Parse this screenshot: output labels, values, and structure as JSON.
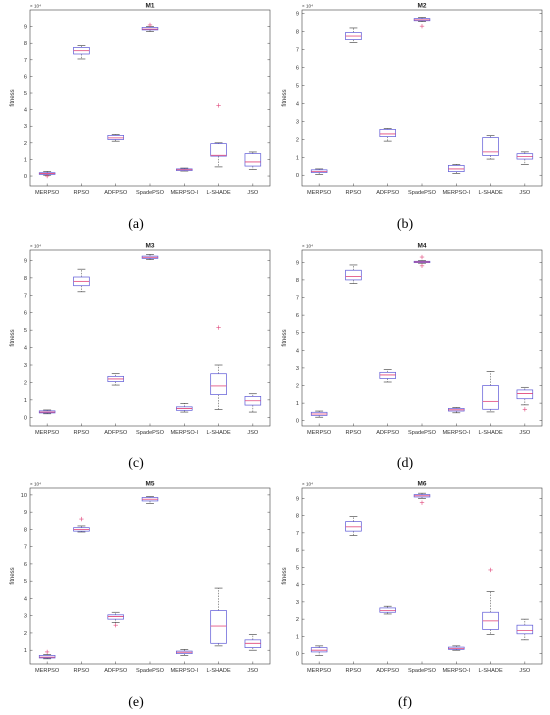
{
  "figure": {
    "panels": [
      {
        "label": "(a)"
      },
      {
        "label": "(b)"
      },
      {
        "label": "(c)"
      },
      {
        "label": "(d)"
      },
      {
        "label": "(e)"
      },
      {
        "label": "(f)"
      }
    ]
  },
  "colors": {
    "box": "#5b57d6",
    "median": "#e0457a",
    "outlier": "#e0457a",
    "axis": "#404040"
  },
  "chart_data": [
    {
      "type": "box",
      "title": "M1",
      "ylabel": "fitness",
      "exponent_label": "× 10⁴",
      "ylim": [
        -0.6,
        10.0
      ],
      "yticks": [
        0,
        1,
        2,
        3,
        4,
        5,
        6,
        7,
        8,
        9
      ],
      "categories": [
        "MERPSO",
        "RPSO",
        "ADFPSO",
        "SpadePSO",
        "MERPSO-I",
        "L-SHADE",
        "JSO"
      ],
      "boxes": [
        {
          "wl": 0.05,
          "q1": 0.1,
          "med": 0.15,
          "q3": 0.2,
          "wh": 0.28,
          "outliers": [
            0.0
          ]
        },
        {
          "wl": 7.05,
          "q1": 7.35,
          "med": 7.55,
          "q3": 7.75,
          "wh": 7.85,
          "outliers": []
        },
        {
          "wl": 2.1,
          "q1": 2.2,
          "med": 2.3,
          "q3": 2.45,
          "wh": 2.5,
          "outliers": []
        },
        {
          "wl": 8.7,
          "q1": 8.8,
          "med": 8.85,
          "q3": 8.95,
          "wh": 9.0,
          "outliers": [
            9.1
          ]
        },
        {
          "wl": 0.3,
          "q1": 0.33,
          "med": 0.38,
          "q3": 0.43,
          "wh": 0.48,
          "outliers": []
        },
        {
          "wl": 0.55,
          "q1": 1.2,
          "med": 1.25,
          "q3": 1.95,
          "wh": 2.0,
          "outliers": [
            4.25
          ]
        },
        {
          "wl": 0.4,
          "q1": 0.6,
          "med": 0.85,
          "q3": 1.35,
          "wh": 1.45,
          "outliers": []
        }
      ]
    },
    {
      "type": "box",
      "title": "M2",
      "ylabel": "fitness",
      "exponent_label": "× 10⁴",
      "ylim": [
        -0.6,
        9.2
      ],
      "yticks": [
        0,
        1,
        2,
        3,
        4,
        5,
        6,
        7,
        8,
        9
      ],
      "categories": [
        "MERPSO",
        "RPSO",
        "ADFPSO",
        "SpadePSO",
        "MERPSO-I",
        "L-SHADE",
        "JSO"
      ],
      "boxes": [
        {
          "wl": 0.05,
          "q1": 0.15,
          "med": 0.2,
          "q3": 0.3,
          "wh": 0.35,
          "outliers": []
        },
        {
          "wl": 7.4,
          "q1": 7.55,
          "med": 7.75,
          "q3": 7.95,
          "wh": 8.2,
          "outliers": []
        },
        {
          "wl": 1.9,
          "q1": 2.15,
          "med": 2.3,
          "q3": 2.55,
          "wh": 2.6,
          "outliers": []
        },
        {
          "wl": 8.55,
          "q1": 8.6,
          "med": 8.65,
          "q3": 8.72,
          "wh": 8.78,
          "outliers": [
            8.3
          ]
        },
        {
          "wl": 0.1,
          "q1": 0.2,
          "med": 0.35,
          "q3": 0.55,
          "wh": 0.6,
          "outliers": []
        },
        {
          "wl": 0.9,
          "q1": 1.1,
          "med": 1.3,
          "q3": 2.1,
          "wh": 2.2,
          "outliers": []
        },
        {
          "wl": 0.6,
          "q1": 0.9,
          "med": 1.05,
          "q3": 1.2,
          "wh": 1.3,
          "outliers": []
        }
      ]
    },
    {
      "type": "box",
      "title": "M3",
      "ylabel": "fitness",
      "exponent_label": "× 10⁴",
      "ylim": [
        -0.5,
        9.6
      ],
      "yticks": [
        0,
        1,
        2,
        3,
        4,
        5,
        6,
        7,
        8,
        9
      ],
      "categories": [
        "MERPSO",
        "RPSO",
        "ADFPSO",
        "SpadePSO",
        "MERPSO-I",
        "L-SHADE",
        "JSO"
      ],
      "boxes": [
        {
          "wl": 0.2,
          "q1": 0.25,
          "med": 0.3,
          "q3": 0.37,
          "wh": 0.42,
          "outliers": []
        },
        {
          "wl": 7.2,
          "q1": 7.55,
          "med": 7.8,
          "q3": 8.05,
          "wh": 8.5,
          "outliers": []
        },
        {
          "wl": 1.85,
          "q1": 2.05,
          "med": 2.2,
          "q3": 2.35,
          "wh": 2.5,
          "outliers": []
        },
        {
          "wl": 9.05,
          "q1": 9.12,
          "med": 9.18,
          "q3": 9.25,
          "wh": 9.35,
          "outliers": []
        },
        {
          "wl": 0.3,
          "q1": 0.4,
          "med": 0.5,
          "q3": 0.6,
          "wh": 0.8,
          "outliers": []
        },
        {
          "wl": 0.45,
          "q1": 1.3,
          "med": 1.8,
          "q3": 2.5,
          "wh": 3.0,
          "outliers": [
            5.15
          ]
        },
        {
          "wl": 0.3,
          "q1": 0.7,
          "med": 0.95,
          "q3": 1.2,
          "wh": 1.35,
          "outliers": []
        }
      ]
    },
    {
      "type": "box",
      "title": "M4",
      "ylabel": "fitness",
      "exponent_label": "× 10⁴",
      "ylim": [
        -0.3,
        9.7
      ],
      "yticks": [
        0,
        1,
        2,
        3,
        4,
        5,
        6,
        7,
        8,
        9
      ],
      "categories": [
        "MERPSO",
        "RPSO",
        "ADFPSO",
        "SpadePSO",
        "MERPSO-I",
        "L-SHADE",
        "JSO"
      ],
      "boxes": [
        {
          "wl": 0.2,
          "q1": 0.3,
          "med": 0.38,
          "q3": 0.48,
          "wh": 0.55,
          "outliers": []
        },
        {
          "wl": 7.8,
          "q1": 8.0,
          "med": 8.2,
          "q3": 8.55,
          "wh": 8.85,
          "outliers": []
        },
        {
          "wl": 2.2,
          "q1": 2.4,
          "med": 2.6,
          "q3": 2.75,
          "wh": 2.9,
          "outliers": []
        },
        {
          "wl": 8.95,
          "q1": 8.98,
          "med": 9.02,
          "q3": 9.06,
          "wh": 9.1,
          "outliers": [
            9.3,
            8.8
          ]
        },
        {
          "wl": 0.45,
          "q1": 0.55,
          "med": 0.62,
          "q3": 0.7,
          "wh": 0.75,
          "outliers": []
        },
        {
          "wl": 0.5,
          "q1": 0.65,
          "med": 1.1,
          "q3": 2.0,
          "wh": 2.8,
          "outliers": []
        },
        {
          "wl": 0.9,
          "q1": 1.25,
          "med": 1.55,
          "q3": 1.75,
          "wh": 1.9,
          "outliers": [
            0.65
          ]
        }
      ]
    },
    {
      "type": "box",
      "title": "M5",
      "ylabel": "fitness",
      "exponent_label": "× 10⁴",
      "ylim": [
        0.2,
        10.4
      ],
      "yticks": [
        1,
        2,
        3,
        4,
        5,
        6,
        7,
        8,
        9,
        10
      ],
      "categories": [
        "MERPSO",
        "RPSO",
        "ADFPSO",
        "SpadePSO",
        "MERPSO-I",
        "L-SHADE",
        "JSO"
      ],
      "boxes": [
        {
          "wl": 0.5,
          "q1": 0.55,
          "med": 0.6,
          "q3": 0.7,
          "wh": 0.75,
          "outliers": [
            0.9
          ]
        },
        {
          "wl": 7.85,
          "q1": 7.9,
          "med": 8.0,
          "q3": 8.1,
          "wh": 8.2,
          "outliers": [
            8.6
          ]
        },
        {
          "wl": 2.6,
          "q1": 2.8,
          "med": 2.95,
          "q3": 3.05,
          "wh": 3.2,
          "outliers": [
            2.45
          ]
        },
        {
          "wl": 9.5,
          "q1": 9.65,
          "med": 9.75,
          "q3": 9.85,
          "wh": 9.9,
          "outliers": []
        },
        {
          "wl": 0.7,
          "q1": 0.8,
          "med": 0.88,
          "q3": 0.95,
          "wh": 1.05,
          "outliers": []
        },
        {
          "wl": 1.25,
          "q1": 1.4,
          "med": 2.4,
          "q3": 3.3,
          "wh": 4.6,
          "outliers": []
        },
        {
          "wl": 1.0,
          "q1": 1.15,
          "med": 1.4,
          "q3": 1.6,
          "wh": 1.9,
          "outliers": []
        }
      ]
    },
    {
      "type": "box",
      "title": "M6",
      "ylabel": "fitness",
      "exponent_label": "× 10⁴",
      "ylim": [
        -0.6,
        9.6
      ],
      "yticks": [
        0,
        1,
        2,
        3,
        4,
        5,
        6,
        7,
        8,
        9
      ],
      "categories": [
        "MERPSO",
        "RPSO",
        "ADFPSO",
        "SpadePSO",
        "MERPSO-I",
        "L-SHADE",
        "JSO"
      ],
      "boxes": [
        {
          "wl": -0.1,
          "q1": 0.1,
          "med": 0.2,
          "q3": 0.35,
          "wh": 0.45,
          "outliers": []
        },
        {
          "wl": 6.85,
          "q1": 7.1,
          "med": 7.35,
          "q3": 7.65,
          "wh": 7.95,
          "outliers": []
        },
        {
          "wl": 2.3,
          "q1": 2.4,
          "med": 2.5,
          "q3": 2.65,
          "wh": 2.75,
          "outliers": []
        },
        {
          "wl": 9.0,
          "q1": 9.08,
          "med": 9.15,
          "q3": 9.22,
          "wh": 9.3,
          "outliers": [
            8.75
          ]
        },
        {
          "wl": 0.2,
          "q1": 0.25,
          "med": 0.3,
          "q3": 0.38,
          "wh": 0.45,
          "outliers": []
        },
        {
          "wl": 1.1,
          "q1": 1.4,
          "med": 1.9,
          "q3": 2.4,
          "wh": 3.6,
          "outliers": [
            4.85
          ]
        },
        {
          "wl": 0.8,
          "q1": 1.15,
          "med": 1.35,
          "q3": 1.65,
          "wh": 2.0,
          "outliers": []
        }
      ]
    }
  ]
}
